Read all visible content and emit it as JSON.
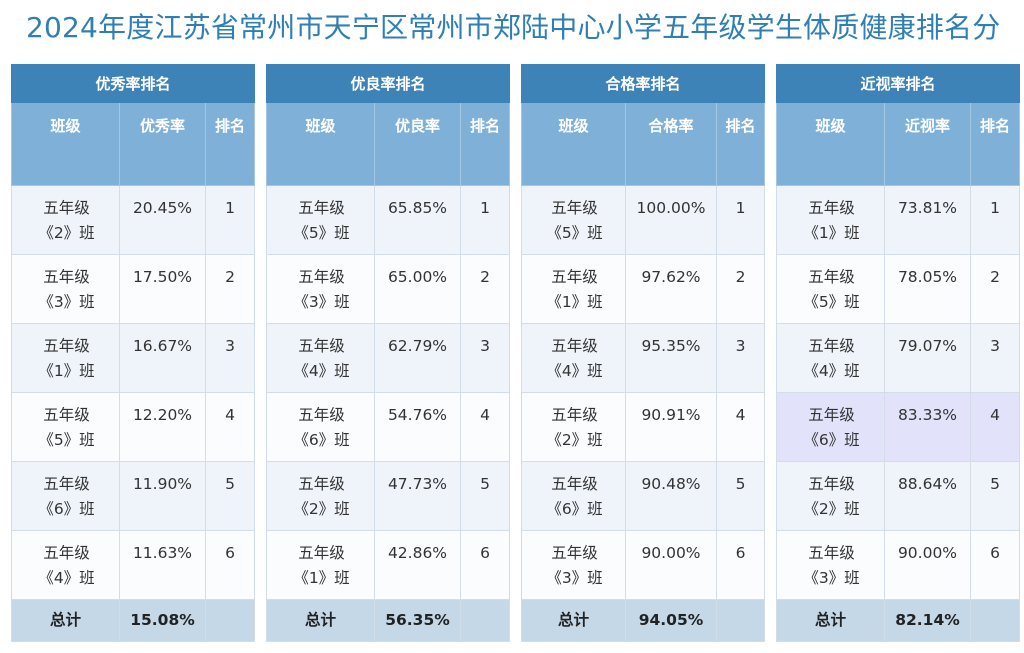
{
  "page_title": "2024年度江苏省常州市天宁区常州市郑陆中心小学五年级学生体质健康排名分",
  "tables": [
    {
      "title": "优秀率排名",
      "col_class": "班级",
      "col_rate": "优秀率",
      "col_rank": "排名",
      "rows": [
        {
          "class_line1": "五年级",
          "class_line2": "《2》班",
          "rate": "20.45%",
          "rank": "1"
        },
        {
          "class_line1": "五年级",
          "class_line2": "《3》班",
          "rate": "17.50%",
          "rank": "2"
        },
        {
          "class_line1": "五年级",
          "class_line2": "《1》班",
          "rate": "16.67%",
          "rank": "3"
        },
        {
          "class_line1": "五年级",
          "class_line2": "《5》班",
          "rate": "12.20%",
          "rank": "4"
        },
        {
          "class_line1": "五年级",
          "class_line2": "《6》班",
          "rate": "11.90%",
          "rank": "5"
        },
        {
          "class_line1": "五年级",
          "class_line2": "《4》班",
          "rate": "11.63%",
          "rank": "6"
        }
      ],
      "total_label": "总计",
      "total_value": "15.08%"
    },
    {
      "title": "优良率排名",
      "col_class": "班级",
      "col_rate": "优良率",
      "col_rank": "排名",
      "rows": [
        {
          "class_line1": "五年级",
          "class_line2": "《5》班",
          "rate": "65.85%",
          "rank": "1"
        },
        {
          "class_line1": "五年级",
          "class_line2": "《3》班",
          "rate": "65.00%",
          "rank": "2"
        },
        {
          "class_line1": "五年级",
          "class_line2": "《4》班",
          "rate": "62.79%",
          "rank": "3"
        },
        {
          "class_line1": "五年级",
          "class_line2": "《6》班",
          "rate": "54.76%",
          "rank": "4"
        },
        {
          "class_line1": "五年级",
          "class_line2": "《2》班",
          "rate": "47.73%",
          "rank": "5"
        },
        {
          "class_line1": "五年级",
          "class_line2": "《1》班",
          "rate": "42.86%",
          "rank": "6"
        }
      ],
      "total_label": "总计",
      "total_value": "56.35%"
    },
    {
      "title": "合格率排名",
      "col_class": "班级",
      "col_rate": "合格率",
      "col_rank": "排名",
      "rows": [
        {
          "class_line1": "五年级",
          "class_line2": "《5》班",
          "rate": "100.00%",
          "rank": "1"
        },
        {
          "class_line1": "五年级",
          "class_line2": "《1》班",
          "rate": "97.62%",
          "rank": "2"
        },
        {
          "class_line1": "五年级",
          "class_line2": "《4》班",
          "rate": "95.35%",
          "rank": "3"
        },
        {
          "class_line1": "五年级",
          "class_line2": "《2》班",
          "rate": "90.91%",
          "rank": "4"
        },
        {
          "class_line1": "五年级",
          "class_line2": "《6》班",
          "rate": "90.48%",
          "rank": "5"
        },
        {
          "class_line1": "五年级",
          "class_line2": "《3》班",
          "rate": "90.00%",
          "rank": "6"
        }
      ],
      "total_label": "总计",
      "total_value": "94.05%"
    },
    {
      "title": "近视率排名",
      "col_class": "班级",
      "col_rate": "近视率",
      "col_rank": "排名",
      "rows": [
        {
          "class_line1": "五年级",
          "class_line2": "《1》班",
          "rate": "73.81%",
          "rank": "1"
        },
        {
          "class_line1": "五年级",
          "class_line2": "《5》班",
          "rate": "78.05%",
          "rank": "2"
        },
        {
          "class_line1": "五年级",
          "class_line2": "《4》班",
          "rate": "79.07%",
          "rank": "3"
        },
        {
          "class_line1": "五年级",
          "class_line2": "《6》班",
          "rate": "83.33%",
          "rank": "4",
          "highlighted": true
        },
        {
          "class_line1": "五年级",
          "class_line2": "《2》班",
          "rate": "88.64%",
          "rank": "5"
        },
        {
          "class_line1": "五年级",
          "class_line2": "《3》班",
          "rate": "90.00%",
          "rank": "6"
        }
      ],
      "total_label": "总计",
      "total_value": "82.14%"
    }
  ],
  "colors": {
    "title_text": "#2f7fb5",
    "header_dark": "#3d83b7",
    "header_light": "#7fb1d8",
    "row_alt": "#eef4fa",
    "total_row": "#c4d8e8",
    "highlight_row": "#e2e2fb"
  }
}
